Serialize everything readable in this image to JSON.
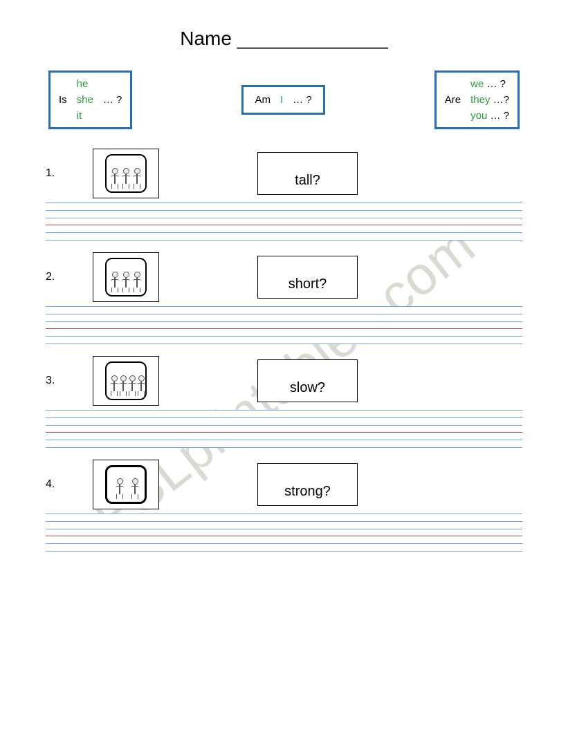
{
  "header": {
    "name_label": "Name ______________"
  },
  "watermark": {
    "text": "ESLprintables.com",
    "color": "#d6d6cf"
  },
  "colors": {
    "box_border": "#2a6fb5",
    "pronoun": "#2b9a3e",
    "line_blue": "#6fa8e8",
    "line_red": "#d23a3a"
  },
  "grammar_boxes": [
    {
      "verb": "Is",
      "pronouns": [
        "he",
        "she",
        "it"
      ],
      "suffix": "… ?",
      "layout": "stack"
    },
    {
      "verb": "Am",
      "pronouns": [
        "I"
      ],
      "suffix": "…  ?",
      "layout": "inline"
    },
    {
      "verb": "Are",
      "pronouns": [
        "we",
        "they",
        "you"
      ],
      "suffix_each": [
        "… ?",
        "…?",
        "… ?"
      ],
      "layout": "stack-suffix"
    }
  ],
  "items": [
    {
      "num": "1.",
      "word": "tall?"
    },
    {
      "num": "2.",
      "word": "short?"
    },
    {
      "num": "3.",
      "word": "slow?"
    },
    {
      "num": "4.",
      "word": "strong?"
    }
  ],
  "writing_lines": {
    "positions_pct": [
      0,
      20,
      40,
      60,
      80,
      100
    ],
    "red_index": 3
  }
}
